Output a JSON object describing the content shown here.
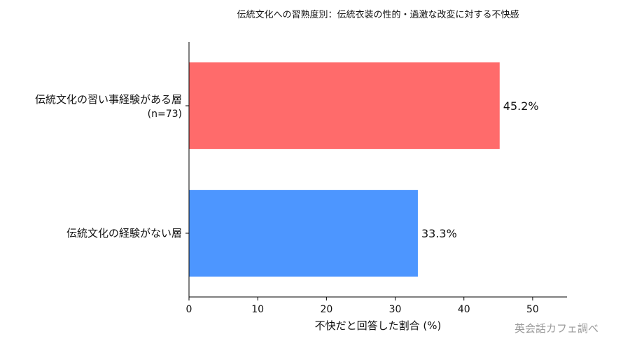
{
  "chart_data": {
    "type": "bar",
    "orientation": "horizontal",
    "title": "伝統文化への習熟度別：伝統衣装の性的・過激な改変に対する不快感",
    "categories": [
      {
        "label": "伝統文化の習い事経験がある層",
        "sublabel": "(n=73)"
      },
      {
        "label": "伝統文化の経験がない層",
        "sublabel": ""
      }
    ],
    "values": [
      45.2,
      33.3
    ],
    "value_labels": [
      "45.2%",
      "33.3%"
    ],
    "colors": [
      "#ff6b6b",
      "#4d96ff"
    ],
    "xlabel": "不快だと回答した割合 (%)",
    "ylabel": "",
    "xlim": [
      0,
      55
    ],
    "xticks": [
      0,
      10,
      20,
      30,
      40,
      50
    ],
    "grid": false,
    "legend": "none"
  },
  "watermark": "英会話カフェ調べ"
}
